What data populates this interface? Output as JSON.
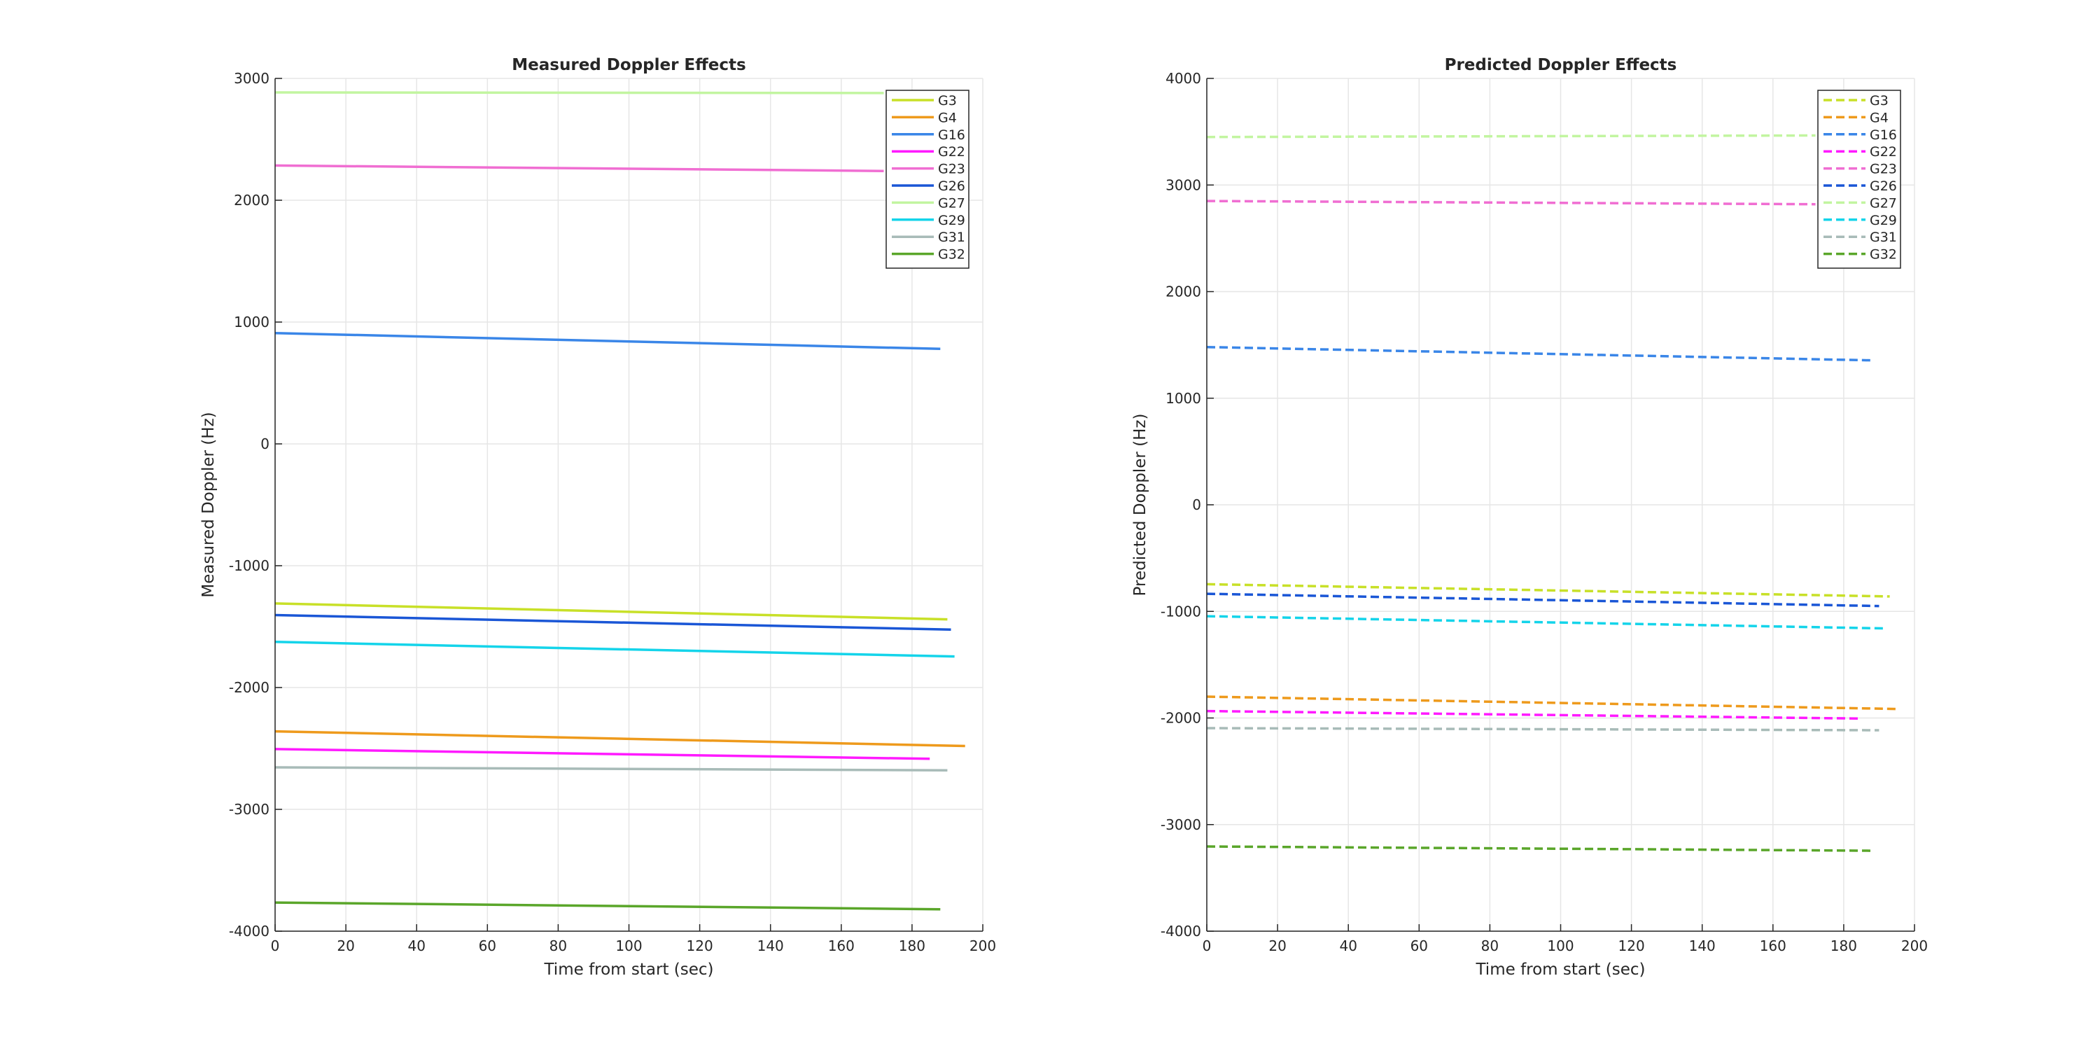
{
  "chart_data": [
    {
      "type": "line",
      "title": "Measured Doppler Effects",
      "xlabel": "Time from start (sec)",
      "ylabel": "Measured Doppler (Hz)",
      "xlim": [
        0,
        200
      ],
      "ylim": [
        -4000,
        3000
      ],
      "xticks": [
        0,
        20,
        40,
        60,
        80,
        100,
        120,
        140,
        160,
        180,
        200
      ],
      "yticks": [
        -4000,
        -3000,
        -2000,
        -1000,
        0,
        1000,
        2000,
        3000
      ],
      "grid": true,
      "legend_position": "top-right",
      "line_style": "solid",
      "series": [
        {
          "name": "G3",
          "color": "#c8e028",
          "x": [
            0,
            190
          ],
          "y": [
            -1310,
            -1440
          ]
        },
        {
          "name": "G4",
          "color": "#ee9a1c",
          "x": [
            0,
            195
          ],
          "y": [
            -2360,
            -2480
          ]
        },
        {
          "name": "G16",
          "color": "#3a86e8",
          "x": [
            0,
            188
          ],
          "y": [
            910,
            780
          ]
        },
        {
          "name": "G22",
          "color": "#ff1aff",
          "x": [
            0,
            185
          ],
          "y": [
            -2505,
            -2585
          ]
        },
        {
          "name": "G23",
          "color": "#f06ed2",
          "x": [
            0,
            172
          ],
          "y": [
            2285,
            2240
          ]
        },
        {
          "name": "G26",
          "color": "#1a56d6",
          "x": [
            0,
            191
          ],
          "y": [
            -1405,
            -1525
          ]
        },
        {
          "name": "G27",
          "color": "#c2f5a0",
          "x": [
            0,
            172
          ],
          "y": [
            2885,
            2880
          ]
        },
        {
          "name": "G29",
          "color": "#14d4ea",
          "x": [
            0,
            192
          ],
          "y": [
            -1625,
            -1745
          ]
        },
        {
          "name": "G31",
          "color": "#a8bbb8",
          "x": [
            0,
            190
          ],
          "y": [
            -2655,
            -2680
          ]
        },
        {
          "name": "G32",
          "color": "#5aa62a",
          "x": [
            0,
            188
          ],
          "y": [
            -3765,
            -3820
          ]
        }
      ]
    },
    {
      "type": "line",
      "title": "Predicted Doppler Effects",
      "xlabel": "Time from start (sec)",
      "ylabel": "Predicted Doppler (Hz)",
      "xlim": [
        0,
        200
      ],
      "ylim": [
        -4000,
        4000
      ],
      "xticks": [
        0,
        20,
        40,
        60,
        80,
        100,
        120,
        140,
        160,
        180,
        200
      ],
      "yticks": [
        -4000,
        -3000,
        -2000,
        -1000,
        0,
        1000,
        2000,
        3000,
        4000
      ],
      "grid": true,
      "legend_position": "top-right",
      "line_style": "dashed",
      "series": [
        {
          "name": "G3",
          "color": "#c8e028",
          "x": [
            0,
            193
          ],
          "y": [
            -745,
            -860
          ]
        },
        {
          "name": "G4",
          "color": "#ee9a1c",
          "x": [
            0,
            195
          ],
          "y": [
            -1800,
            -1915
          ]
        },
        {
          "name": "G16",
          "color": "#3a86e8",
          "x": [
            0,
            188
          ],
          "y": [
            1480,
            1355
          ]
        },
        {
          "name": "G22",
          "color": "#ff1aff",
          "x": [
            0,
            185
          ],
          "y": [
            -1935,
            -2005
          ]
        },
        {
          "name": "G23",
          "color": "#f06ed2",
          "x": [
            0,
            172
          ],
          "y": [
            2850,
            2820
          ]
        },
        {
          "name": "G26",
          "color": "#1a56d6",
          "x": [
            0,
            190
          ],
          "y": [
            -835,
            -950
          ]
        },
        {
          "name": "G27",
          "color": "#c2f5a0",
          "x": [
            0,
            172
          ],
          "y": [
            3450,
            3465
          ]
        },
        {
          "name": "G29",
          "color": "#14d4ea",
          "x": [
            0,
            192
          ],
          "y": [
            -1045,
            -1160
          ]
        },
        {
          "name": "G31",
          "color": "#a8bbb8",
          "x": [
            0,
            190
          ],
          "y": [
            -2095,
            -2115
          ]
        },
        {
          "name": "G32",
          "color": "#5aa62a",
          "x": [
            0,
            188
          ],
          "y": [
            -3205,
            -3245
          ]
        }
      ]
    }
  ]
}
